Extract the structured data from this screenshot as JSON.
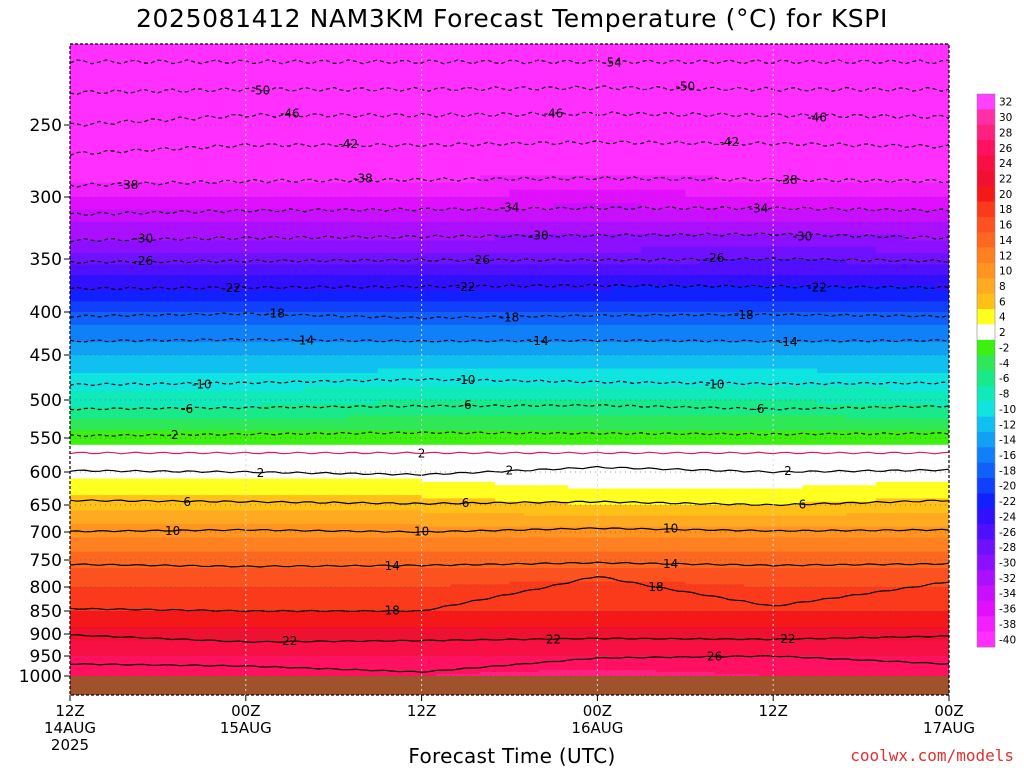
{
  "title": "2025081412 NAM3KM Forecast Temperature (°C) for KSPI",
  "xlabel": "Forecast Time (UTC)",
  "credit": "coolwx.com/models",
  "x_ticks": [
    {
      "lines": [
        "12Z",
        "14AUG",
        "2025"
      ]
    },
    {
      "lines": [
        "00Z",
        "15AUG"
      ]
    },
    {
      "lines": [
        "12Z"
      ]
    },
    {
      "lines": [
        "00Z",
        "16AUG"
      ]
    },
    {
      "lines": [
        "12Z"
      ]
    },
    {
      "lines": [
        "00Z",
        "17AUG"
      ]
    }
  ],
  "chart_data": {
    "type": "heatmap",
    "title": "2025081412 NAM3KM Forecast Temperature (°C) for KSPI",
    "xlabel": "Forecast Time (UTC)",
    "ylabel": "",
    "x_range_hours": [
      0,
      60
    ],
    "x_tick_hours": [
      0,
      12,
      24,
      36,
      48,
      60
    ],
    "y_axis": "pressure (hPa), reversed, 1000 at bottom",
    "y_ticks": [
      250,
      300,
      350,
      400,
      450,
      500,
      550,
      600,
      650,
      700,
      750,
      800,
      850,
      900,
      950,
      1000
    ],
    "ylim": [
      1000,
      200
    ],
    "grid": true,
    "colorbar_labels": [
      32,
      30,
      28,
      26,
      24,
      22,
      20,
      18,
      16,
      14,
      12,
      10,
      8,
      6,
      4,
      2,
      -2,
      -4,
      -6,
      -8,
      -10,
      -12,
      -14,
      -16,
      -18,
      -20,
      -22,
      -24,
      -26,
      -28,
      -30,
      -32,
      -34,
      -36,
      -38,
      -40
    ],
    "colorbar_colors": [
      "#ff40ff",
      "#ff2fa8",
      "#ff2080",
      "#ff1060",
      "#f81045",
      "#f01030",
      "#f41818",
      "#fa3a1a",
      "#fc5220",
      "#fd6820",
      "#fe8020",
      "#ff9520",
      "#ffaa20",
      "#ffc018",
      "#ffff20",
      "#ffffff",
      "#3cf010",
      "#2ee858",
      "#18ea8a",
      "#10eab8",
      "#10e4e0",
      "#10c0f0",
      "#10a0f4",
      "#1080f8",
      "#1060fa",
      "#1040fc",
      "#1020ff",
      "#3010ff",
      "#5010ff",
      "#6f10ff",
      "#8c10ff",
      "#aa10ff",
      "#c810ff",
      "#e010ff",
      "#f020ff",
      "#ff30ff"
    ],
    "surface_color": "#a0522d",
    "profile_levels": [
      200,
      250,
      300,
      350,
      400,
      450,
      500,
      550,
      575,
      600,
      650,
      700,
      750,
      800,
      850,
      900,
      950,
      1000
    ],
    "profiles": [
      {
        "hour": 0,
        "temps": [
          -54,
          -44,
          -36,
          -27,
          -18,
          -12,
          -7,
          -1,
          1,
          3,
          7,
          11,
          15,
          18,
          20,
          23,
          26,
          28
        ]
      },
      {
        "hour": 12,
        "temps": [
          -54,
          -45,
          -36,
          -27,
          -18,
          -12,
          -7,
          -1,
          1,
          3,
          7,
          11,
          15,
          18,
          20,
          23,
          26,
          28
        ]
      },
      {
        "hour": 24,
        "temps": [
          -54,
          -45,
          -36,
          -27,
          -18,
          -12,
          -6,
          -1,
          1,
          3,
          7,
          11,
          15,
          18,
          20,
          23,
          26,
          28
        ]
      },
      {
        "hour": 36,
        "temps": [
          -54,
          -45,
          -35,
          -27,
          -18,
          -12,
          -6,
          -1,
          1,
          2,
          6,
          11,
          15,
          19,
          20,
          23,
          26,
          29
        ]
      },
      {
        "hour": 48,
        "temps": [
          -54,
          -45,
          -36,
          -26,
          -18,
          -12,
          -6,
          -1,
          1,
          2,
          6,
          11,
          15,
          18,
          20,
          23,
          26,
          28
        ]
      },
      {
        "hour": 60,
        "temps": [
          -54,
          -45,
          -36,
          -27,
          -18,
          -12,
          -7,
          -1,
          1,
          3,
          7,
          11,
          15,
          18,
          20,
          23,
          26,
          28
        ]
      }
    ],
    "contours": [
      {
        "value": -54,
        "dashed": true,
        "levels": [
          211,
          211,
          211,
          211,
          211,
          211
        ],
        "label_hours": [
          37
        ]
      },
      {
        "value": -50,
        "dashed": true,
        "levels": [
          230,
          228,
          228,
          227,
          228,
          228
        ],
        "label_hours": [
          13,
          42
        ]
      },
      {
        "value": -46,
        "dashed": true,
        "levels": [
          250,
          244,
          244,
          243,
          244,
          245
        ],
        "label_hours": [
          15,
          33,
          51
        ]
      },
      {
        "value": -42,
        "dashed": true,
        "levels": [
          270,
          264,
          264,
          262,
          263,
          265
        ],
        "label_hours": [
          19,
          45
        ]
      },
      {
        "value": -38,
        "dashed": true,
        "levels": [
          292,
          289,
          288,
          287,
          288,
          289
        ],
        "label_hours": [
          4,
          20,
          49
        ]
      },
      {
        "value": -34,
        "dashed": true,
        "levels": [
          314,
          311,
          310,
          309,
          309,
          311
        ],
        "label_hours": [
          30,
          47
        ]
      },
      {
        "value": -30,
        "dashed": true,
        "levels": [
          335,
          333,
          332,
          331,
          330,
          333
        ],
        "label_hours": [
          5,
          32,
          50
        ]
      },
      {
        "value": -26,
        "dashed": true,
        "levels": [
          353,
          352,
          351,
          351,
          350,
          352
        ],
        "label_hours": [
          5,
          28,
          44
        ]
      },
      {
        "value": -22,
        "dashed": true,
        "levels": [
          378,
          377,
          376,
          375,
          376,
          377
        ],
        "label_hours": [
          11,
          27,
          51
        ]
      },
      {
        "value": -18,
        "dashed": true,
        "levels": [
          405,
          402,
          407,
          404,
          403,
          405
        ],
        "label_hours": [
          14,
          30,
          46
        ]
      },
      {
        "value": -14,
        "dashed": true,
        "levels": [
          434,
          432,
          434,
          433,
          434,
          433
        ],
        "label_hours": [
          16,
          32,
          49
        ]
      },
      {
        "value": -10,
        "dashed": true,
        "levels": [
          483,
          481,
          477,
          480,
          482,
          481
        ],
        "label_hours": [
          9,
          27,
          44
        ]
      },
      {
        "value": -6,
        "dashed": true,
        "levels": [
          512,
          510,
          508,
          507,
          512,
          508
        ],
        "label_hours": [
          8,
          27,
          47
        ]
      },
      {
        "value": -2,
        "dashed": true,
        "levels": [
          547,
          545,
          543,
          544,
          545,
          544
        ],
        "label_hours": [
          7
        ]
      },
      {
        "value": 2,
        "dashed": false,
        "levels": [
          598,
          600,
          604,
          593,
          600,
          597
        ],
        "label_hours": [
          13,
          30,
          49
        ]
      },
      {
        "value": 6,
        "dashed": false,
        "levels": [
          643,
          645,
          648,
          645,
          650,
          643
        ],
        "label_hours": [
          8,
          27,
          50
        ]
      },
      {
        "value": 10,
        "dashed": false,
        "levels": [
          699,
          696,
          700,
          693,
          698,
          696
        ],
        "label_hours": [
          7,
          24,
          41
        ]
      },
      {
        "value": 14,
        "dashed": false,
        "levels": [
          758,
          762,
          760,
          755,
          760,
          757
        ],
        "label_hours": [
          22,
          41
        ]
      },
      {
        "value": 18,
        "dashed": false,
        "levels": [
          845,
          850,
          850,
          780,
          840,
          790
        ],
        "label_hours": [
          22,
          40
        ]
      },
      {
        "value": 22,
        "dashed": false,
        "levels": [
          902,
          918,
          915,
          910,
          912,
          905
        ],
        "label_hours": [
          15,
          33,
          49
        ]
      },
      {
        "value": 26,
        "dashed": false,
        "levels": [
          970,
          975,
          990,
          955,
          950,
          970
        ],
        "label_hours": [
          44
        ]
      }
    ],
    "contour_0_label": {
      "value": 2,
      "color": "#e0186a",
      "level": 572,
      "label_hours": [
        24
      ]
    }
  }
}
